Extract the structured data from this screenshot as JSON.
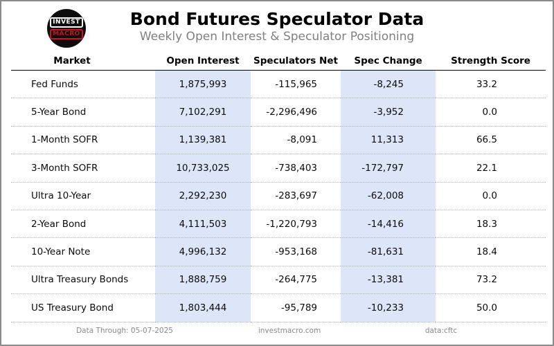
{
  "header": {
    "title": "Bond Futures Speculator Data",
    "subtitle": "Weekly Open Interest & Speculator Positioning",
    "logo": {
      "line1": "INVEST",
      "line2": "MACRO"
    }
  },
  "table": {
    "columns": [
      "Market",
      "Open Interest",
      "Speculators Net",
      "Spec Change",
      "Strength Score"
    ],
    "rows": [
      {
        "market": "Fed Funds",
        "open_interest": "1,875,993",
        "speculators_net": "-115,965",
        "spec_change": "-8,245",
        "strength_score": "33.2"
      },
      {
        "market": "5-Year Bond",
        "open_interest": "7,102,291",
        "speculators_net": "-2,296,496",
        "spec_change": "-3,952",
        "strength_score": "0.0"
      },
      {
        "market": "1-Month SOFR",
        "open_interest": "1,139,381",
        "speculators_net": "-8,091",
        "spec_change": "11,313",
        "strength_score": "66.5"
      },
      {
        "market": "3-Month SOFR",
        "open_interest": "10,733,025",
        "speculators_net": "-738,403",
        "spec_change": "-172,797",
        "strength_score": "22.1"
      },
      {
        "market": "Ultra 10-Year",
        "open_interest": "2,292,230",
        "speculators_net": "-283,697",
        "spec_change": "-62,008",
        "strength_score": "0.0"
      },
      {
        "market": "2-Year Bond",
        "open_interest": "4,111,503",
        "speculators_net": "-1,220,793",
        "spec_change": "-14,416",
        "strength_score": "18.3"
      },
      {
        "market": "10-Year Note",
        "open_interest": "4,996,132",
        "speculators_net": "-953,168",
        "spec_change": "-81,631",
        "strength_score": "18.4"
      },
      {
        "market": "Ultra Treasury Bonds",
        "open_interest": "1,888,759",
        "speculators_net": "-264,775",
        "spec_change": "-13,381",
        "strength_score": "73.2"
      },
      {
        "market": "US Treasury Bond",
        "open_interest": "1,803,444",
        "speculators_net": "-95,789",
        "spec_change": "-10,233",
        "strength_score": "50.0"
      }
    ]
  },
  "footer": {
    "data_through": "Data Through: 05-07-2025",
    "site": "investmacro.com",
    "source": "data:cftc"
  },
  "colors": {
    "highlight_column": "#dce6f8",
    "logo_red": "#cf1020",
    "subtitle_gray": "#7f7f7f",
    "frame_border": "#8a8a8a"
  },
  "chart_data": {
    "type": "table",
    "title": "Bond Futures Speculator Data",
    "subtitle": "Weekly Open Interest & Speculator Positioning",
    "columns": [
      "Market",
      "Open Interest",
      "Speculators Net",
      "Spec Change",
      "Strength Score"
    ],
    "rows": [
      [
        "Fed Funds",
        1875993,
        -115965,
        -8245,
        33.2
      ],
      [
        "5-Year Bond",
        7102291,
        -2296496,
        -3952,
        0.0
      ],
      [
        "1-Month SOFR",
        1139381,
        -8091,
        11313,
        66.5
      ],
      [
        "3-Month SOFR",
        10733025,
        -738403,
        -172797,
        22.1
      ],
      [
        "Ultra 10-Year",
        2292230,
        -283697,
        -62008,
        0.0
      ],
      [
        "2-Year Bond",
        4111503,
        -1220793,
        -14416,
        18.3
      ],
      [
        "10-Year Note",
        4996132,
        -953168,
        -81631,
        18.4
      ],
      [
        "Ultra Treasury Bonds",
        1888759,
        -264775,
        -13381,
        73.2
      ],
      [
        "US Treasury Bond",
        1803444,
        -95789,
        -10233,
        50.0
      ]
    ],
    "highlighted_columns": [
      "Open Interest",
      "Spec Change"
    ],
    "layout": {
      "grid": "dotted-row-separators",
      "header_rule": "solid"
    }
  }
}
